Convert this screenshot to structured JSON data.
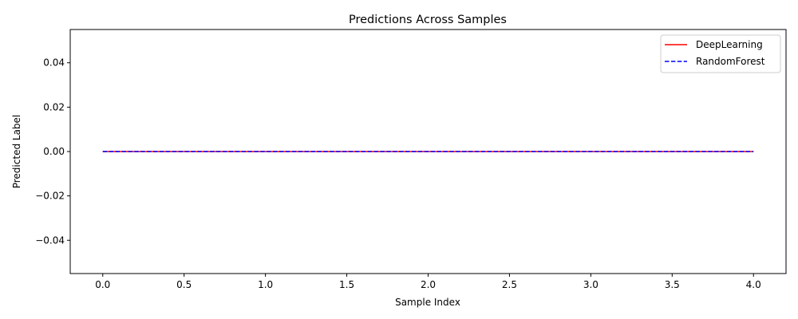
{
  "chart_data": {
    "type": "line",
    "title": "Predictions Across Samples",
    "xlabel": "Sample Index",
    "ylabel": "Predicted Label",
    "x": [
      0,
      1,
      2,
      3,
      4
    ],
    "xlim": [
      -0.2,
      4.2
    ],
    "ylim": [
      -0.055,
      0.055
    ],
    "xticks": [
      0.0,
      0.5,
      1.0,
      1.5,
      2.0,
      2.5,
      3.0,
      3.5,
      4.0
    ],
    "xtick_labels": [
      "0.0",
      "0.5",
      "1.0",
      "1.5",
      "2.0",
      "2.5",
      "3.0",
      "3.5",
      "4.0"
    ],
    "yticks": [
      -0.04,
      -0.02,
      0.0,
      0.02,
      0.04
    ],
    "ytick_labels": [
      "−0.04",
      "−0.02",
      "0.00",
      "0.02",
      "0.04"
    ],
    "grid": false,
    "legend_position": "top-right",
    "series": [
      {
        "name": "DeepLearning",
        "values": [
          0,
          0,
          0,
          0,
          0
        ],
        "color": "#ff0000",
        "linestyle": "solid"
      },
      {
        "name": "RandomForest",
        "values": [
          0,
          0,
          0,
          0,
          0
        ],
        "color": "#0000ff",
        "linestyle": "dashed"
      }
    ]
  }
}
